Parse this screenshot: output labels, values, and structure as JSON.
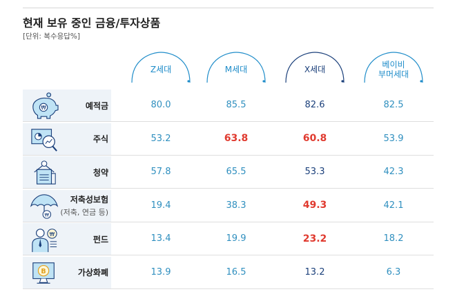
{
  "title": "현재 보유 중인 금융/투자상품",
  "unit": "[단위: 복수응답%]",
  "columns": [
    {
      "label": "Z세대",
      "tone": "light"
    },
    {
      "label": "M세대",
      "tone": "light"
    },
    {
      "label": "X세대",
      "tone": "dark"
    },
    {
      "label": "베이비\n부머세대",
      "tone": "light"
    }
  ],
  "rows": [
    {
      "label": "예적금",
      "sub": "",
      "icon": "piggy-bank-icon",
      "values": [
        "80.0",
        "85.5",
        "82.6",
        "82.5"
      ],
      "highlight": [
        false,
        false,
        false,
        false
      ]
    },
    {
      "label": "주식",
      "sub": "",
      "icon": "stock-chart-icon",
      "values": [
        "53.2",
        "63.8",
        "60.8",
        "53.9"
      ],
      "highlight": [
        false,
        true,
        true,
        false
      ]
    },
    {
      "label": "청약",
      "sub": "",
      "icon": "subscription-icon",
      "values": [
        "57.8",
        "65.5",
        "53.3",
        "42.3"
      ],
      "highlight": [
        false,
        false,
        false,
        false
      ]
    },
    {
      "label": "저축성보험",
      "sub": "(저축, 연금 등)",
      "icon": "insurance-umbrella-icon",
      "values": [
        "19.4",
        "38.3",
        "49.3",
        "42.1"
      ],
      "highlight": [
        false,
        false,
        true,
        false
      ]
    },
    {
      "label": "펀드",
      "sub": "",
      "icon": "fund-manager-icon",
      "values": [
        "13.4",
        "19.9",
        "23.2",
        "18.2"
      ],
      "highlight": [
        false,
        false,
        true,
        false
      ]
    },
    {
      "label": "가상화폐",
      "sub": "",
      "icon": "crypto-monitor-icon",
      "values": [
        "13.9",
        "16.5",
        "13.2",
        "6.3"
      ],
      "highlight": [
        false,
        false,
        false,
        false
      ]
    }
  ],
  "colors": {
    "accent": "#1e8cc9",
    "dark": "#1a3f7a",
    "highlight": "#e03a2f",
    "icon_fill": "#bfe3f5",
    "icon_line": "#1a3f7a"
  }
}
